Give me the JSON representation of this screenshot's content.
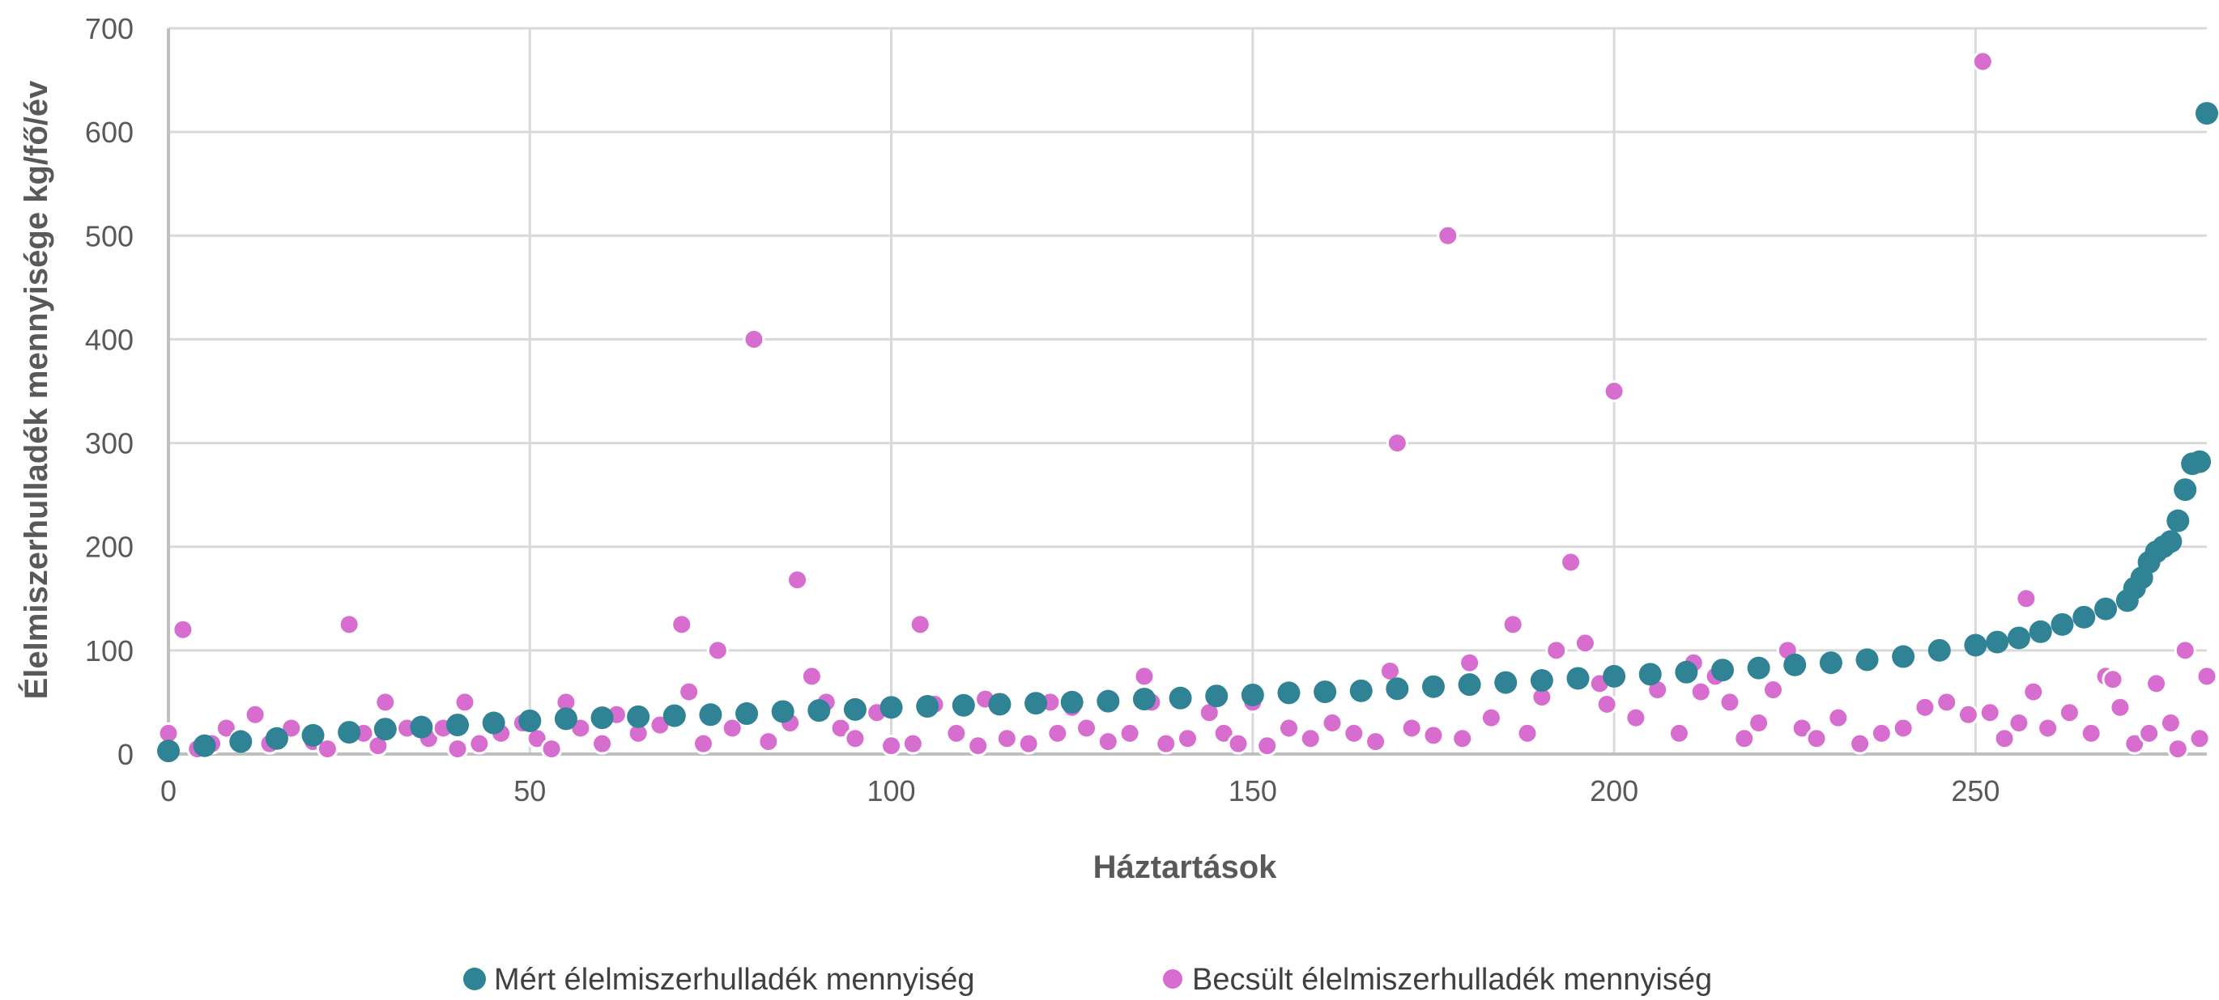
{
  "colors": {
    "measured": "#2f8395",
    "estimated": "#d86dd0",
    "grid": "#d9d9d9",
    "text": "#595959"
  },
  "chart_data": {
    "type": "scatter",
    "title": "",
    "xlabel": "Háztartások",
    "ylabel": "Élelmiszerhulladék mennyisége kg/fő/év",
    "xlim": [
      0,
      282
    ],
    "ylim": [
      0,
      700
    ],
    "xticks": [
      0,
      50,
      100,
      150,
      200,
      250
    ],
    "yticks": [
      0,
      100,
      200,
      300,
      400,
      500,
      600,
      700
    ],
    "grid": true,
    "legend_position": "bottom",
    "series": [
      {
        "name": "Mért élelmiszerhulladék mennyiség",
        "color": "#2f8395",
        "marker": "circle",
        "x": [
          0,
          5,
          10,
          15,
          20,
          25,
          30,
          35,
          40,
          45,
          50,
          55,
          60,
          65,
          70,
          75,
          80,
          85,
          90,
          95,
          100,
          105,
          110,
          115,
          120,
          125,
          130,
          135,
          140,
          145,
          150,
          155,
          160,
          165,
          170,
          175,
          180,
          185,
          190,
          195,
          200,
          205,
          210,
          215,
          220,
          225,
          230,
          235,
          240,
          245,
          250,
          253,
          256,
          259,
          262,
          265,
          268,
          271,
          272,
          273,
          274,
          275,
          276,
          277,
          278,
          279,
          280,
          281,
          282
        ],
        "y": [
          3,
          8,
          12,
          15,
          18,
          21,
          24,
          26,
          28,
          30,
          32,
          34,
          35,
          36,
          37,
          38,
          39,
          41,
          42,
          43,
          45,
          46,
          47,
          48,
          49,
          50,
          51,
          53,
          54,
          56,
          57,
          59,
          60,
          61,
          63,
          65,
          67,
          69,
          71,
          73,
          75,
          77,
          79,
          81,
          83,
          86,
          88,
          91,
          94,
          100,
          105,
          108,
          112,
          118,
          125,
          132,
          140,
          148,
          160,
          170,
          185,
          195,
          200,
          205,
          225,
          255,
          280,
          282,
          618
        ]
      },
      {
        "name": "Becsült élelmiszerhulladék mennyiség",
        "color": "#d86dd0",
        "marker": "circle",
        "x": [
          0,
          2,
          4,
          6,
          8,
          10,
          12,
          14,
          17,
          20,
          22,
          25,
          27,
          29,
          30,
          33,
          36,
          38,
          40,
          41,
          43,
          46,
          49,
          51,
          53,
          55,
          57,
          60,
          62,
          65,
          68,
          71,
          72,
          74,
          76,
          78,
          81,
          83,
          86,
          87,
          89,
          91,
          93,
          95,
          98,
          100,
          103,
          104,
          106,
          109,
          112,
          113,
          116,
          119,
          122,
          123,
          125,
          127,
          130,
          133,
          135,
          136,
          138,
          141,
          144,
          146,
          148,
          150,
          152,
          155,
          158,
          161,
          164,
          167,
          169,
          170,
          172,
          175,
          177,
          179,
          180,
          183,
          186,
          188,
          190,
          192,
          194,
          196,
          198,
          199,
          200,
          203,
          206,
          209,
          211,
          212,
          214,
          216,
          218,
          220,
          222,
          224,
          226,
          228,
          231,
          234,
          237,
          240,
          243,
          246,
          249,
          251,
          252,
          254,
          256,
          257,
          258,
          260,
          263,
          266,
          268,
          269,
          270,
          272,
          274,
          275,
          277,
          278,
          279,
          281,
          282
        ],
        "y": [
          20,
          120,
          5,
          10,
          25,
          15,
          38,
          10,
          25,
          12,
          5,
          125,
          20,
          8,
          50,
          25,
          15,
          25,
          5,
          50,
          10,
          20,
          30,
          15,
          5,
          50,
          25,
          10,
          38,
          20,
          28,
          125,
          60,
          10,
          100,
          25,
          400,
          12,
          30,
          168,
          75,
          50,
          25,
          15,
          40,
          8,
          10,
          125,
          48,
          20,
          8,
          53,
          15,
          10,
          50,
          20,
          45,
          25,
          12,
          20,
          75,
          50,
          10,
          15,
          40,
          20,
          10,
          50,
          8,
          25,
          15,
          30,
          20,
          12,
          80,
          300,
          25,
          18,
          500,
          15,
          88,
          35,
          125,
          20,
          55,
          100,
          185,
          107,
          68,
          48,
          350,
          35,
          62,
          20,
          88,
          60,
          75,
          50,
          15,
          30,
          62,
          100,
          25,
          15,
          35,
          10,
          20,
          25,
          45,
          50,
          38,
          668,
          40,
          15,
          30,
          150,
          60,
          25,
          40,
          20,
          75,
          72,
          45,
          10,
          20,
          68,
          30,
          5,
          100,
          15,
          75
        ]
      }
    ]
  }
}
